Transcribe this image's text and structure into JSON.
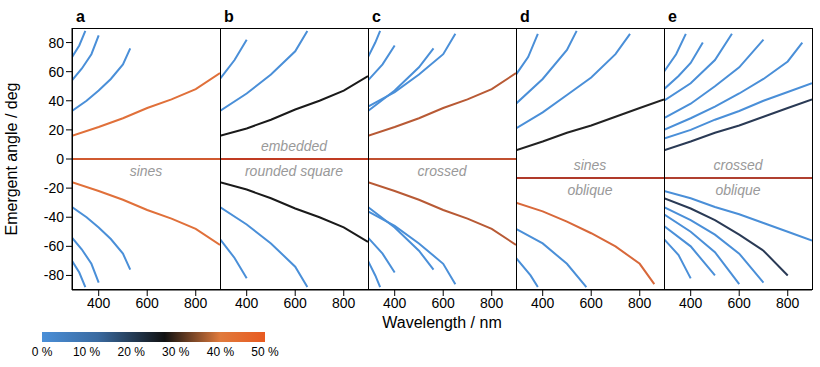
{
  "y_label": "Emergent angle / deg",
  "x_label": "Wavelength / nm",
  "colorbar": {
    "range": [
      0,
      50
    ],
    "ticks": [
      {
        "value": 0,
        "label": "0 %"
      },
      {
        "value": 10,
        "label": "10 %"
      },
      {
        "value": 20,
        "label": "20 %"
      },
      {
        "value": 30,
        "label": "30 %"
      },
      {
        "value": 40,
        "label": "40 %"
      },
      {
        "value": 50,
        "label": "50 %"
      }
    ]
  },
  "chart_data": [
    {
      "type": "line",
      "title": "a",
      "annotation": [
        "sines"
      ],
      "xlim": [
        290,
        900
      ],
      "xticks": [
        400,
        600,
        800
      ],
      "ylim": [
        -90,
        90
      ],
      "yticks": [
        -80,
        -60,
        -40,
        -20,
        0,
        20,
        40,
        60,
        80
      ],
      "series": [
        {
          "color": "#d05a30",
          "x": [
            290,
            900
          ],
          "values": [
            0,
            0
          ]
        },
        {
          "color": "#e0703a",
          "x": [
            290,
            400,
            500,
            600,
            700,
            800,
            900
          ],
          "values": [
            16,
            22,
            28,
            35,
            41,
            48,
            59
          ]
        },
        {
          "color": "#e0703a",
          "x": [
            290,
            400,
            500,
            600,
            700,
            800,
            900
          ],
          "values": [
            -16,
            -22,
            -28,
            -35,
            -41,
            -48,
            -59
          ]
        },
        {
          "color": "#4a8fd8",
          "x": [
            290,
            350,
            400,
            450,
            500,
            530
          ],
          "values": [
            33,
            40,
            47,
            55,
            65,
            76
          ]
        },
        {
          "color": "#4a8fd8",
          "x": [
            290,
            350,
            400,
            450,
            500,
            530
          ],
          "values": [
            -33,
            -40,
            -47,
            -55,
            -65,
            -76
          ]
        },
        {
          "color": "#4a8fd8",
          "x": [
            290,
            330,
            370,
            400
          ],
          "values": [
            54,
            62,
            72,
            85
          ]
        },
        {
          "color": "#4a8fd8",
          "x": [
            290,
            330,
            370,
            400
          ],
          "values": [
            -54,
            -62,
            -72,
            -85
          ]
        },
        {
          "color": "#4a8fd8",
          "x": [
            290,
            320,
            345
          ],
          "values": [
            70,
            78,
            88
          ]
        },
        {
          "color": "#4a8fd8",
          "x": [
            290,
            320,
            345
          ],
          "values": [
            -70,
            -78,
            -88
          ]
        }
      ]
    },
    {
      "type": "line",
      "title": "b",
      "annotation": [
        "embedded",
        "rounded square"
      ],
      "tick_labels": "x",
      "xlim": [
        290,
        900
      ],
      "xticks": [
        400,
        600,
        800
      ],
      "ylim": [
        -90,
        90
      ],
      "yticks": [
        -80,
        -60,
        -40,
        -20,
        0,
        20,
        40,
        60,
        80
      ],
      "series": [
        {
          "color": "#c03b22",
          "x": [
            290,
            900
          ],
          "values": [
            0,
            0
          ]
        },
        {
          "color": "#1a1a1a",
          "x": [
            290,
            400,
            500,
            600,
            700,
            800,
            900
          ],
          "values": [
            16,
            21,
            27,
            34,
            40,
            47,
            57
          ]
        },
        {
          "color": "#1a1a1a",
          "x": [
            290,
            400,
            500,
            600,
            700,
            800,
            900
          ],
          "values": [
            -16,
            -21,
            -27,
            -34,
            -40,
            -47,
            -57
          ]
        },
        {
          "color": "#4a8fd8",
          "x": [
            290,
            400,
            500,
            600,
            650
          ],
          "values": [
            33,
            45,
            58,
            74,
            88
          ]
        },
        {
          "color": "#4a8fd8",
          "x": [
            290,
            400,
            500,
            600,
            650
          ],
          "values": [
            -33,
            -45,
            -58,
            -74,
            -88
          ]
        },
        {
          "color": "#4a8fd8",
          "x": [
            290,
            350,
            400
          ],
          "values": [
            55,
            68,
            82
          ]
        },
        {
          "color": "#4a8fd8",
          "x": [
            290,
            350,
            400
          ],
          "values": [
            -55,
            -68,
            -82
          ]
        }
      ]
    },
    {
      "type": "line",
      "title": "c",
      "annotation": [
        "crossed"
      ],
      "tick_labels": "x",
      "xlim": [
        290,
        900
      ],
      "xticks": [
        400,
        600,
        800
      ],
      "ylim": [
        -90,
        90
      ],
      "yticks": [
        -80,
        -60,
        -40,
        -20,
        0,
        20,
        40,
        60,
        80
      ],
      "series": [
        {
          "color": "#c05030",
          "x": [
            290,
            900
          ],
          "values": [
            0,
            0
          ]
        },
        {
          "color": "#b85a35",
          "x": [
            290,
            400,
            500,
            600,
            700,
            800,
            900
          ],
          "values": [
            16,
            22,
            28,
            35,
            41,
            48,
            59
          ]
        },
        {
          "color": "#b85a35",
          "x": [
            290,
            400,
            500,
            600,
            700,
            800,
            900
          ],
          "values": [
            -16,
            -22,
            -28,
            -35,
            -41,
            -48,
            -59
          ]
        },
        {
          "color": "#4a8fd8",
          "x": [
            290,
            400,
            500,
            560
          ],
          "values": [
            33,
            47,
            63,
            76
          ]
        },
        {
          "color": "#4a8fd8",
          "x": [
            290,
            400,
            500,
            560
          ],
          "values": [
            -33,
            -47,
            -63,
            -76
          ]
        },
        {
          "color": "#4a8fd8",
          "x": [
            290,
            400,
            500,
            600,
            650
          ],
          "values": [
            36,
            46,
            58,
            72,
            86
          ]
        },
        {
          "color": "#4a8fd8",
          "x": [
            290,
            400,
            500,
            600,
            650
          ],
          "values": [
            -36,
            -46,
            -58,
            -72,
            -86
          ]
        },
        {
          "color": "#4a8fd8",
          "x": [
            290,
            350,
            400
          ],
          "values": [
            54,
            65,
            78
          ]
        },
        {
          "color": "#4a8fd8",
          "x": [
            290,
            350,
            400
          ],
          "values": [
            -54,
            -65,
            -78
          ]
        },
        {
          "color": "#4a8fd8",
          "x": [
            290,
            320,
            340
          ],
          "values": [
            70,
            80,
            88
          ]
        },
        {
          "color": "#4a8fd8",
          "x": [
            290,
            320,
            340
          ],
          "values": [
            -70,
            -80,
            -88
          ]
        }
      ]
    },
    {
      "type": "line",
      "title": "d",
      "annotation": [
        "sines",
        "oblique"
      ],
      "tick_labels": "x",
      "xlim": [
        290,
        900
      ],
      "xticks": [
        400,
        600,
        800
      ],
      "ylim": [
        -90,
        90
      ],
      "yticks": [
        -80,
        -60,
        -40,
        -20,
        0,
        20,
        40,
        60,
        80
      ],
      "series": [
        {
          "color": "#b03a2a",
          "x": [
            290,
            900
          ],
          "values": [
            -13,
            -13
          ]
        },
        {
          "color": "#222222",
          "x": [
            290,
            400,
            500,
            600,
            700,
            800,
            900
          ],
          "values": [
            6,
            12,
            18,
            23,
            29,
            35,
            41
          ]
        },
        {
          "color": "#4a8fd8",
          "x": [
            290,
            400,
            500,
            600,
            700,
            760
          ],
          "values": [
            21,
            32,
            44,
            56,
            72,
            86
          ]
        },
        {
          "color": "#4a8fd8",
          "x": [
            290,
            400,
            500,
            540
          ],
          "values": [
            38,
            55,
            75,
            88
          ]
        },
        {
          "color": "#4a8fd8",
          "x": [
            290,
            340,
            380
          ],
          "values": [
            58,
            70,
            86
          ]
        },
        {
          "color": "#d8683a",
          "x": [
            290,
            400,
            500,
            600,
            700,
            800,
            860
          ],
          "values": [
            -30,
            -36,
            -43,
            -51,
            -60,
            -72,
            -86
          ]
        },
        {
          "color": "#4a8fd8",
          "x": [
            290,
            400,
            500,
            580
          ],
          "values": [
            -48,
            -58,
            -72,
            -88
          ]
        },
        {
          "color": "#4a8fd8",
          "x": [
            290,
            350,
            380
          ],
          "values": [
            -68,
            -80,
            -88
          ]
        }
      ]
    },
    {
      "type": "line",
      "title": "e",
      "annotation": [
        "crossed",
        "oblique"
      ],
      "tick_labels": "x",
      "xlim": [
        290,
        900
      ],
      "xticks": [
        400,
        600,
        800
      ],
      "ylim": [
        -90,
        90
      ],
      "yticks": [
        -80,
        -60,
        -40,
        -20,
        0,
        20,
        40,
        60,
        80
      ],
      "series": [
        {
          "color": "#b04030",
          "x": [
            290,
            900
          ],
          "values": [
            -13,
            -13
          ]
        },
        {
          "color": "#2a3a55",
          "x": [
            290,
            400,
            500,
            600,
            700,
            800,
            900
          ],
          "values": [
            6,
            12,
            18,
            23,
            29,
            35,
            41
          ]
        },
        {
          "color": "#4a8fd8",
          "x": [
            290,
            400,
            500,
            600,
            700,
            800,
            900
          ],
          "values": [
            14,
            20,
            27,
            33,
            40,
            46,
            52
          ]
        },
        {
          "color": "#4a8fd8",
          "x": [
            290,
            400,
            500,
            600,
            700,
            800,
            860
          ],
          "values": [
            20,
            28,
            36,
            45,
            55,
            67,
            80
          ]
        },
        {
          "color": "#4a8fd8",
          "x": [
            290,
            400,
            500,
            600,
            700
          ],
          "values": [
            28,
            38,
            50,
            63,
            82
          ]
        },
        {
          "color": "#4a8fd8",
          "x": [
            290,
            400,
            500,
            570
          ],
          "values": [
            40,
            52,
            68,
            86
          ]
        },
        {
          "color": "#4a8fd8",
          "x": [
            290,
            350,
            400,
            450
          ],
          "values": [
            48,
            57,
            66,
            80
          ]
        },
        {
          "color": "#4a8fd8",
          "x": [
            290,
            340,
            380
          ],
          "values": [
            60,
            72,
            86
          ]
        },
        {
          "color": "#4a8fd8",
          "x": [
            290,
            400,
            500,
            600,
            700,
            800,
            900
          ],
          "values": [
            -22,
            -27,
            -33,
            -38,
            -44,
            -50,
            -56
          ]
        },
        {
          "color": "#2a3a55",
          "x": [
            290,
            400,
            500,
            600,
            700,
            800
          ],
          "values": [
            -27,
            -34,
            -42,
            -52,
            -63,
            -80
          ]
        },
        {
          "color": "#4a8fd8",
          "x": [
            290,
            400,
            500,
            600,
            700
          ],
          "values": [
            -33,
            -42,
            -52,
            -65,
            -85
          ]
        },
        {
          "color": "#4a8fd8",
          "x": [
            290,
            400,
            500,
            600
          ],
          "values": [
            -38,
            -50,
            -64,
            -86
          ]
        },
        {
          "color": "#4a8fd8",
          "x": [
            290,
            400,
            500
          ],
          "values": [
            -46,
            -60,
            -80
          ]
        },
        {
          "color": "#4a8fd8",
          "x": [
            290,
            350,
            400
          ],
          "values": [
            -55,
            -66,
            -82
          ]
        }
      ]
    }
  ]
}
